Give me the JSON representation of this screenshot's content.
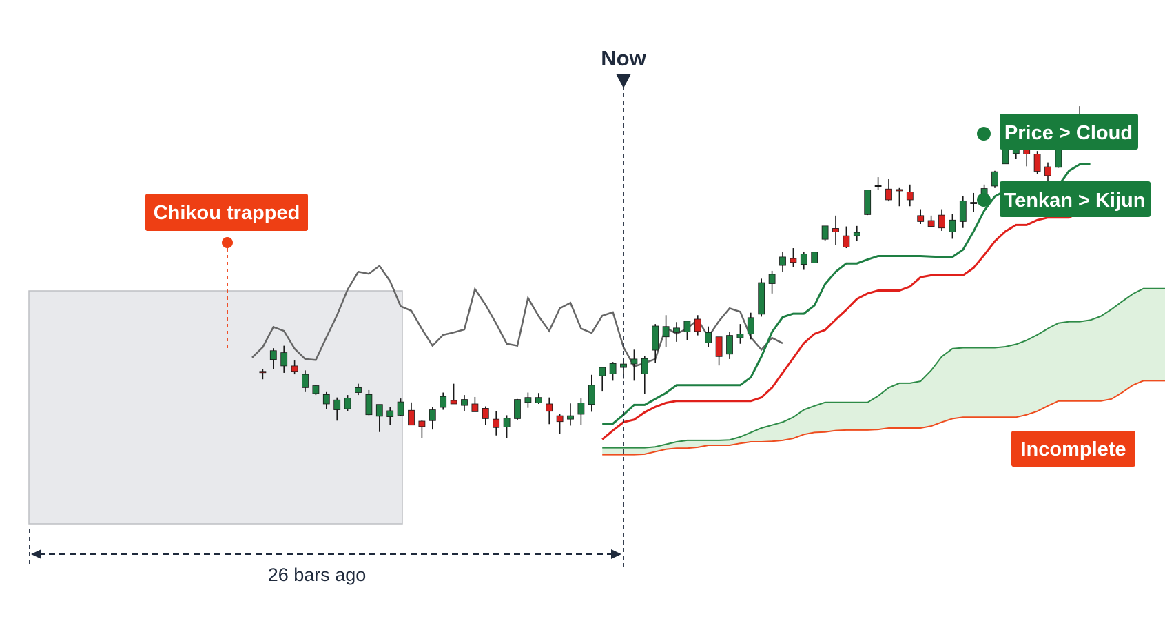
{
  "colors": {
    "bull": "#1e7f43",
    "bear": "#d9211e",
    "neutral": "#111111",
    "tenkan": "#1e7f43",
    "kijun": "#e0201b",
    "span_a": "#2e8b47",
    "span_b": "#ee4d1f",
    "cloud_fill": "#d9efd8",
    "chikou": "#666666",
    "past_box": "#e8e9ec",
    "now_marker": "#1f2a3c",
    "badge_green": "#187c3c",
    "badge_orange": "#ee3f14",
    "dimension": "#1f2a3c"
  },
  "labels": {
    "now": "Now",
    "chikou": "Chikou trapped",
    "bars_ago": "26 bars ago",
    "incomplete": "Incomplete"
  },
  "legend": {
    "price_cloud": "Price > Cloud",
    "tenkan_kijun": "Tenkan > Kijun"
  },
  "chart_data": {
    "type": "candlestick",
    "title": "",
    "xlabel": "",
    "ylabel": "",
    "x_axis": "bar index (now = 0, negative = past)",
    "now_bar": 0,
    "lookback_bars": 26,
    "ylim": [
      0,
      100
    ],
    "candles": {
      "fields": [
        "bar",
        "open",
        "high",
        "low",
        "close"
      ],
      "values": [
        [
          -34,
          50.8,
          51.2,
          49.2,
          50.6
        ],
        [
          -33,
          53.2,
          55.5,
          51.2,
          55.0
        ],
        [
          -32,
          51.9,
          56.0,
          50.5,
          54.6
        ],
        [
          -31,
          51.9,
          53.0,
          50.2,
          50.8
        ],
        [
          -30,
          47.5,
          51.0,
          46.6,
          50.2
        ],
        [
          -29,
          46.3,
          48.0,
          46.0,
          47.9
        ],
        [
          -28,
          44.2,
          46.6,
          43.2,
          46.1
        ],
        [
          -27,
          43.0,
          45.5,
          40.8,
          45.0
        ],
        [
          -26,
          43.2,
          46.0,
          42.7,
          45.4
        ],
        [
          -25,
          46.5,
          48.3,
          46.0,
          47.5
        ],
        [
          -24,
          42.0,
          47.0,
          41.9,
          46.1
        ],
        [
          -23,
          41.7,
          44.1,
          38.5,
          44.1
        ],
        [
          -22,
          41.6,
          43.6,
          40.0,
          42.8
        ],
        [
          -21,
          41.9,
          45.3,
          41.8,
          44.6
        ],
        [
          -20,
          42.9,
          44.5,
          40.0,
          39.9
        ],
        [
          -19,
          40.7,
          40.9,
          37.3,
          39.6
        ],
        [
          -18,
          40.8,
          43.5,
          39.0,
          43.0
        ],
        [
          -17,
          43.5,
          46.5,
          43.0,
          45.7
        ],
        [
          -16,
          44.9,
          48.3,
          44.3,
          44.2
        ],
        [
          -15,
          43.9,
          46.0,
          42.8,
          45.1
        ],
        [
          -14,
          44.2,
          45.6,
          42.9,
          42.6
        ],
        [
          -13,
          43.3,
          43.7,
          40.0,
          41.2
        ],
        [
          -12,
          41.1,
          42.7,
          37.8,
          39.4
        ],
        [
          -11,
          39.5,
          41.9,
          37.3,
          41.3
        ],
        [
          -10,
          41.2,
          45.2,
          40.9,
          45.1
        ],
        [
          -9,
          44.5,
          46.5,
          43.4,
          45.5
        ],
        [
          -8,
          44.4,
          46.4,
          44.2,
          45.5
        ],
        [
          -7,
          44.2,
          45.5,
          40.1,
          42.7
        ],
        [
          -6,
          41.8,
          42.2,
          38.1,
          40.6
        ],
        [
          -5,
          41.1,
          44.3,
          39.8,
          41.8
        ],
        [
          -4,
          42.1,
          45.4,
          40.0,
          44.4
        ],
        [
          -3,
          44.1,
          50.1,
          42.6,
          48.0
        ],
        [
          -2,
          49.9,
          51.6,
          46.7,
          51.6
        ],
        [
          -1,
          50.3,
          52.7,
          48.9,
          52.4
        ],
        [
          0,
          51.6,
          53.4,
          49.3,
          52.3
        ],
        [
          1,
          52.3,
          55.2,
          48.9,
          53.3
        ],
        [
          2,
          50.3,
          53.9,
          46.2,
          53.4
        ],
        [
          3,
          55.1,
          60.4,
          52.5,
          60.0
        ],
        [
          4,
          57.8,
          62.2,
          55.7,
          59.9
        ],
        [
          5,
          58.7,
          60.8,
          56.8,
          59.6
        ],
        [
          6,
          58.8,
          61.1,
          57.2,
          61.0
        ],
        [
          7,
          61.4,
          62.2,
          58.1,
          58.9
        ],
        [
          8,
          56.6,
          59.9,
          55.7,
          58.7
        ],
        [
          9,
          57.8,
          57.8,
          52.0,
          53.8
        ],
        [
          10,
          54.3,
          58.8,
          53.3,
          58.1
        ],
        [
          11,
          57.6,
          60.4,
          56.4,
          58.4
        ],
        [
          12,
          58.4,
          62.7,
          57.3,
          61.7
        ],
        [
          13,
          62.4,
          69.6,
          61.9,
          68.8
        ],
        [
          14,
          68.6,
          71.2,
          66.6,
          70.5
        ],
        [
          15,
          72.3,
          75.0,
          71.0,
          74.0
        ],
        [
          16,
          73.7,
          75.8,
          72.0,
          72.9
        ],
        [
          17,
          72.5,
          75.1,
          71.4,
          74.6
        ],
        [
          18,
          72.8,
          74.5,
          72.8,
          75.0
        ],
        [
          19,
          77.6,
          80.2,
          77.2,
          80.3
        ],
        [
          20,
          79.8,
          82.4,
          76.4,
          79.1
        ],
        [
          21,
          78.3,
          80.2,
          75.8,
          76.0
        ],
        [
          22,
          78.3,
          80.3,
          77.2,
          79.0
        ],
        [
          23,
          82.6,
          87.3,
          82.5,
          87.6
        ],
        [
          24,
          88.5,
          90.2,
          87.6,
          88.4
        ],
        [
          25,
          87.8,
          89.9,
          85.3,
          85.6
        ],
        [
          26,
          87.7,
          88.0,
          84.3,
          87.5
        ],
        [
          27,
          87.2,
          88.7,
          84.3,
          85.6
        ],
        [
          28,
          82.4,
          83.7,
          80.7,
          81.2
        ],
        [
          29,
          81.4,
          82.4,
          80.0,
          80.2
        ],
        [
          30,
          82.5,
          83.7,
          79.3,
          79.9
        ],
        [
          31,
          79.1,
          82.7,
          77.7,
          81.5
        ],
        [
          32,
          81.2,
          86.3,
          79.9,
          85.4
        ],
        [
          33,
          85.1,
          87.0,
          83.1,
          85.0
        ],
        [
          34,
          86.6,
          88.7,
          85.8,
          87.9
        ],
        [
          35,
          88.4,
          91.5,
          88.0,
          91.3
        ],
        [
          36,
          92.9,
          96.7,
          92.9,
          96.7
        ],
        [
          37,
          95.0,
          98.5,
          93.9,
          97.9
        ],
        [
          38,
          96.4,
          97.5,
          92.4,
          94.9
        ],
        [
          39,
          94.9,
          95.5,
          90.9,
          91.4
        ],
        [
          40,
          92.3,
          93.2,
          89.4,
          90.5
        ],
        [
          41,
          92.2,
          98.3,
          92.1,
          97.2
        ],
        [
          42,
          98.0,
          101.4,
          98.0,
          100.2
        ],
        [
          43,
          100.4,
          104.6,
          99.6,
          101.6
        ]
      ]
    },
    "tenkan_sen": {
      "name": "Tenkan",
      "x": [
        -2,
        -1,
        0,
        1,
        2,
        3,
        4,
        5,
        6,
        7,
        8,
        9,
        10,
        11,
        12,
        13,
        14,
        15,
        16,
        17,
        18,
        19,
        20,
        21,
        22,
        23,
        24,
        25,
        26,
        27,
        28,
        29,
        30,
        31,
        32,
        33,
        34,
        35,
        36,
        37,
        38,
        39,
        40,
        41,
        42,
        43,
        44
      ],
      "y": [
        40.2,
        40.2,
        42.0,
        44.0,
        44.0,
        45.2,
        46.4,
        48.0,
        48.0,
        48.0,
        48.0,
        48.0,
        48.0,
        48.0,
        49.6,
        53.8,
        58.8,
        61.8,
        62.5,
        62.5,
        64.2,
        68.5,
        71.0,
        72.7,
        72.7,
        73.5,
        74.2,
        74.2,
        74.2,
        74.2,
        74.2,
        74.1,
        74.0,
        74.0,
        75.5,
        79.2,
        83.4,
        86.3,
        87.5,
        87.5,
        87.5,
        87.5,
        87.5,
        88.5,
        91.5,
        92.8,
        92.8
      ]
    },
    "kijun_sen": {
      "name": "Kijun",
      "x": [
        -2,
        -1,
        0,
        1,
        2,
        3,
        4,
        5,
        6,
        7,
        8,
        9,
        10,
        11,
        12,
        13,
        14,
        15,
        16,
        17,
        18,
        19,
        20,
        21,
        22,
        23,
        24,
        25,
        26,
        27,
        28,
        29,
        30,
        31,
        32,
        33,
        34,
        35,
        36,
        37,
        38,
        39,
        40,
        41,
        42,
        43,
        44
      ],
      "y": [
        37.0,
        38.8,
        40.5,
        41.0,
        42.5,
        43.6,
        44.4,
        44.8,
        44.8,
        44.8,
        44.8,
        44.8,
        44.8,
        44.8,
        44.8,
        45.5,
        47.5,
        50.5,
        53.5,
        56.5,
        58.4,
        59.2,
        61.3,
        63.3,
        65.5,
        66.6,
        67.2,
        67.2,
        67.2,
        68.0,
        69.9,
        70.3,
        70.3,
        70.3,
        70.3,
        71.8,
        74.4,
        77.2,
        79.2,
        80.5,
        80.5,
        81.5,
        82.0,
        82.0,
        82.0,
        83.2,
        85.6
      ]
    },
    "senkou_span_a": {
      "name": "Senkou A",
      "x": [
        -2,
        -1,
        0,
        1,
        2,
        3,
        4,
        5,
        6,
        7,
        8,
        9,
        10,
        11,
        12,
        13,
        14,
        15,
        16,
        17,
        18,
        19,
        20,
        21,
        22,
        23,
        24,
        25,
        26,
        27,
        28,
        29,
        30,
        31,
        32,
        33,
        34,
        35,
        36,
        37,
        38,
        39,
        40,
        41,
        42,
        43,
        44,
        45,
        46,
        47,
        48,
        49,
        50,
        51,
        52,
        53,
        54,
        55,
        56,
        57,
        58,
        59,
        60,
        61,
        62,
        63,
        64,
        65,
        66,
        67,
        68,
        69,
        70,
        71,
        72
      ],
      "y": [
        35.3,
        35.3,
        35.3,
        35.3,
        35.3,
        35.5,
        36.0,
        36.5,
        36.8,
        36.8,
        36.8,
        36.8,
        36.9,
        37.5,
        38.4,
        39.3,
        39.9,
        40.5,
        41.5,
        43.0,
        43.8,
        44.5,
        44.5,
        44.5,
        44.5,
        44.5,
        45.8,
        47.5,
        48.4,
        48.4,
        48.8,
        51.0,
        53.8,
        55.4,
        55.6,
        55.6,
        55.6,
        55.6,
        55.8,
        56.3,
        57.1,
        58.2,
        59.5,
        60.6,
        60.9,
        60.9,
        61.2,
        62.0,
        63.4,
        65.0,
        66.5,
        67.6,
        67.6,
        67.6,
        67.6,
        67.7,
        68.5,
        70.8,
        73.0,
        73.8,
        73.8,
        73.8,
        74.3,
        75.3,
        76.3,
        76.6,
        76.9,
        78.0,
        79.1,
        79.2,
        79.6,
        80.3,
        81.3,
        81.3,
        81.3
      ]
    },
    "senkou_span_b": {
      "name": "Senkou B",
      "x": [
        -2,
        -1,
        0,
        1,
        2,
        3,
        4,
        5,
        6,
        7,
        8,
        9,
        10,
        11,
        12,
        13,
        14,
        15,
        16,
        17,
        18,
        19,
        20,
        21,
        22,
        23,
        24,
        25,
        26,
        27,
        28,
        29,
        30,
        31,
        32,
        33,
        34,
        35,
        36,
        37,
        38,
        39,
        40,
        41,
        42,
        43,
        44,
        45,
        46,
        47,
        48,
        49,
        50,
        51,
        52,
        53,
        54,
        55,
        56,
        57,
        58,
        59,
        60,
        61,
        62,
        63,
        64,
        65,
        66,
        67,
        68,
        69,
        70,
        71,
        72
      ],
      "y": [
        33.9,
        33.9,
        33.9,
        33.9,
        34.0,
        34.5,
        35.0,
        35.2,
        35.2,
        35.4,
        35.8,
        35.8,
        35.8,
        36.2,
        36.5,
        36.5,
        36.6,
        36.8,
        37.2,
        38.0,
        38.4,
        38.5,
        38.8,
        38.9,
        38.9,
        38.9,
        39.0,
        39.3,
        39.3,
        39.3,
        39.3,
        39.7,
        40.5,
        41.2,
        41.5,
        41.5,
        41.5,
        41.5,
        41.5,
        41.5,
        42.0,
        42.7,
        43.8,
        44.8,
        44.8,
        44.8,
        44.8,
        44.8,
        45.2,
        46.5,
        48.0,
        48.9,
        48.9,
        48.9,
        48.9,
        48.9,
        48.9,
        49.8,
        51.7,
        52.6,
        52.6,
        52.6,
        52.6,
        52.6,
        52.8,
        53.4,
        54.4,
        55.3,
        55.4,
        55.4,
        55.4,
        55.8,
        56.6,
        57.0,
        57.0
      ]
    },
    "chikou_span": {
      "name": "Chikou",
      "x": [
        -35,
        -34,
        -33,
        -32,
        -31,
        -30,
        -29,
        -28,
        -27,
        -26,
        -25,
        -24,
        -23,
        -22,
        -21,
        -20,
        -19,
        -18,
        -17,
        -16,
        -15,
        -14,
        -13,
        -12,
        -11,
        -10,
        -9,
        -8,
        -7,
        -6,
        -5,
        -4,
        -3,
        -2,
        -1,
        0,
        1,
        2,
        3,
        4,
        5,
        6,
        7,
        8,
        9,
        10,
        11,
        12,
        13,
        14,
        15
      ],
      "y": [
        53.6,
        55.7,
        59.8,
        59.0,
        55.4,
        53.3,
        53.1,
        57.7,
        62.2,
        67.4,
        71.0,
        70.6,
        72.2,
        69.1,
        64.0,
        63.1,
        59.4,
        56.0,
        58.2,
        58.7,
        59.3,
        67.5,
        64.3,
        60.5,
        56.4,
        56.0,
        65.7,
        62.0,
        59.0,
        63.6,
        64.7,
        59.5,
        58.6,
        62.1,
        62.8,
        55.7,
        51.8,
        52.5,
        53.3,
        59.7,
        58.4,
        59.5,
        61.3,
        57.8,
        61.0,
        63.6,
        62.9,
        57.7,
        55.2,
        57.6,
        56.5
      ]
    },
    "annotations": [
      {
        "text": "Now",
        "at_bar": 0
      },
      {
        "text": "Chikou trapped",
        "target": "chikou_span"
      },
      {
        "text": "26 bars ago",
        "from_bar": -26,
        "to_bar": 0
      },
      {
        "text": "Incomplete",
        "target": "cloud"
      },
      {
        "text": "Price > Cloud",
        "marker": "dot"
      },
      {
        "text": "Tenkan > Kijun",
        "marker": "dot"
      }
    ]
  }
}
